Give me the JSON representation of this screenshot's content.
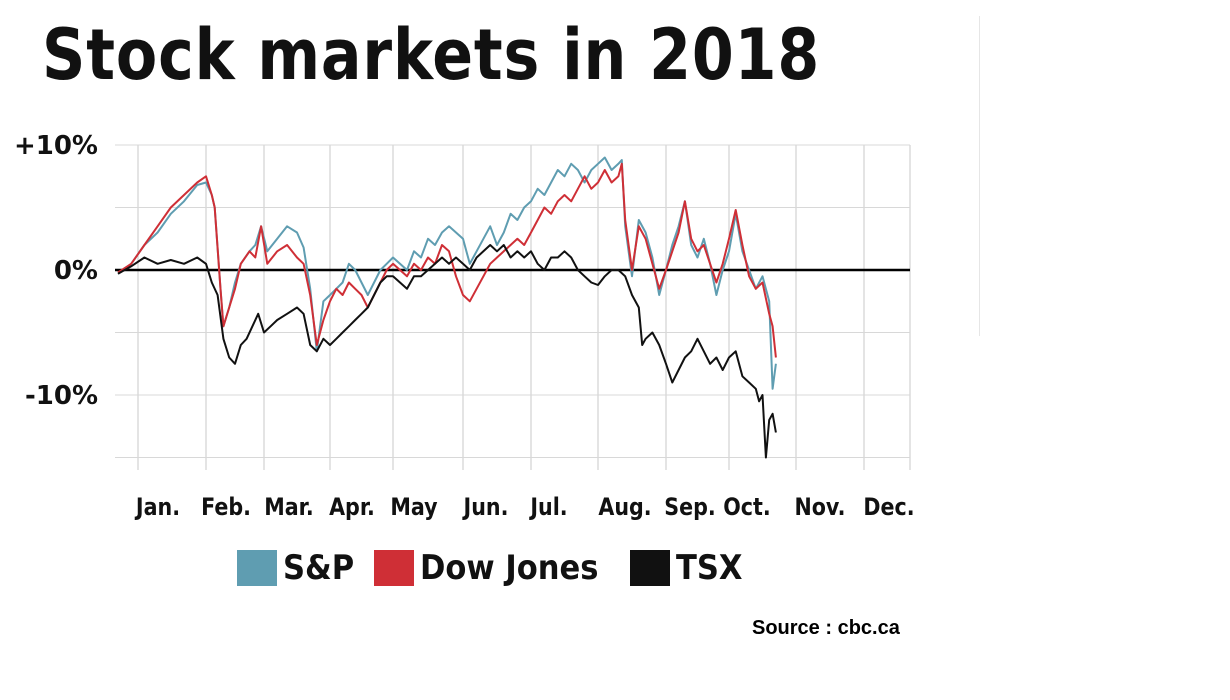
{
  "title": "Stock markets in 2018",
  "source": "Source : cbc.ca",
  "colors": {
    "sp": "#5f9db1",
    "dow": "#cf2f36",
    "tsx": "#111111"
  },
  "chart_data": {
    "type": "line",
    "title": "Stock markets in 2018",
    "ylim": [
      -16,
      10
    ],
    "y_ticks": [
      10,
      0,
      -10
    ],
    "y_tick_labels": [
      "+10%",
      "0%",
      "-10%"
    ],
    "months": [
      "Jan.",
      "Feb.",
      "Mar.",
      "Apr.",
      "May",
      "Jun.",
      "Jul.",
      "Aug.",
      "Sep.",
      "Oct.",
      "Nov.",
      "Dec."
    ],
    "x_unit": "month (0 = start of year, 12 = end of year)",
    "zero_line": true,
    "grid": true,
    "legend": "bottom",
    "series": [
      {
        "name": "S&P",
        "color": "#5f9db1",
        "points": [
          [
            0.0,
            -0.3
          ],
          [
            0.15,
            0.5
          ],
          [
            0.3,
            2.0
          ],
          [
            0.45,
            3.0
          ],
          [
            0.6,
            4.5
          ],
          [
            0.75,
            5.5
          ],
          [
            0.9,
            6.8
          ],
          [
            1.0,
            7.0
          ],
          [
            1.1,
            6.0
          ],
          [
            1.15,
            5.0
          ],
          [
            1.25,
            -1.5
          ],
          [
            1.3,
            -4.5
          ],
          [
            1.4,
            -3.0
          ],
          [
            1.5,
            -1.0
          ],
          [
            1.6,
            0.5
          ],
          [
            1.75,
            1.5
          ],
          [
            1.85,
            2.0
          ],
          [
            1.95,
            3.5
          ],
          [
            2.05,
            1.5
          ],
          [
            2.2,
            2.5
          ],
          [
            2.35,
            3.5
          ],
          [
            2.5,
            3.0
          ],
          [
            2.6,
            1.8
          ],
          [
            2.7,
            -1.5
          ],
          [
            2.8,
            -6.5
          ],
          [
            2.9,
            -2.5
          ],
          [
            3.0,
            -2.0
          ],
          [
            3.1,
            -1.5
          ],
          [
            3.2,
            -1.0
          ],
          [
            3.3,
            0.5
          ],
          [
            3.4,
            0.0
          ],
          [
            3.5,
            -1.0
          ],
          [
            3.6,
            -2.0
          ],
          [
            3.7,
            -1.0
          ],
          [
            3.8,
            0.0
          ],
          [
            3.9,
            0.5
          ],
          [
            4.0,
            1.0
          ],
          [
            4.1,
            0.5
          ],
          [
            4.2,
            0.0
          ],
          [
            4.3,
            1.5
          ],
          [
            4.4,
            1.0
          ],
          [
            4.5,
            2.5
          ],
          [
            4.6,
            2.0
          ],
          [
            4.7,
            3.0
          ],
          [
            4.8,
            3.5
          ],
          [
            4.9,
            3.0
          ],
          [
            5.0,
            2.5
          ],
          [
            5.1,
            0.5
          ],
          [
            5.2,
            1.5
          ],
          [
            5.3,
            2.5
          ],
          [
            5.4,
            3.5
          ],
          [
            5.5,
            2.0
          ],
          [
            5.6,
            3.0
          ],
          [
            5.7,
            4.5
          ],
          [
            5.8,
            4.0
          ],
          [
            5.9,
            5.0
          ],
          [
            6.0,
            5.5
          ],
          [
            6.1,
            6.5
          ],
          [
            6.2,
            6.0
          ],
          [
            6.3,
            7.0
          ],
          [
            6.4,
            8.0
          ],
          [
            6.5,
            7.5
          ],
          [
            6.6,
            8.5
          ],
          [
            6.7,
            8.0
          ],
          [
            6.8,
            7.0
          ],
          [
            6.9,
            8.0
          ],
          [
            7.0,
            8.5
          ],
          [
            7.1,
            9.0
          ],
          [
            7.2,
            8.0
          ],
          [
            7.3,
            8.5
          ],
          [
            7.35,
            8.8
          ],
          [
            7.4,
            3.5
          ],
          [
            7.5,
            -0.5
          ],
          [
            7.6,
            4.0
          ],
          [
            7.7,
            3.0
          ],
          [
            7.8,
            1.0
          ],
          [
            7.9,
            -2.0
          ],
          [
            8.0,
            0.0
          ],
          [
            8.1,
            2.0
          ],
          [
            8.2,
            3.5
          ],
          [
            8.3,
            5.5
          ],
          [
            8.4,
            2.0
          ],
          [
            8.5,
            1.0
          ],
          [
            8.6,
            2.5
          ],
          [
            8.7,
            0.5
          ],
          [
            8.8,
            -2.0
          ],
          [
            8.9,
            0.0
          ],
          [
            9.0,
            1.5
          ],
          [
            9.1,
            4.5
          ],
          [
            9.2,
            1.5
          ],
          [
            9.3,
            0.0
          ],
          [
            9.4,
            -1.5
          ],
          [
            9.5,
            -0.5
          ],
          [
            9.6,
            -2.5
          ],
          [
            9.65,
            -9.5
          ],
          [
            9.7,
            -7.5
          ]
        ]
      },
      {
        "name": "Dow Jones",
        "color": "#cf2f36",
        "points": [
          [
            0.0,
            -0.2
          ],
          [
            0.15,
            0.5
          ],
          [
            0.3,
            2.0
          ],
          [
            0.45,
            3.5
          ],
          [
            0.6,
            5.0
          ],
          [
            0.75,
            6.0
          ],
          [
            0.9,
            7.0
          ],
          [
            1.0,
            7.5
          ],
          [
            1.1,
            6.0
          ],
          [
            1.15,
            5.0
          ],
          [
            1.25,
            -1.5
          ],
          [
            1.3,
            -4.5
          ],
          [
            1.4,
            -3.0
          ],
          [
            1.5,
            -1.5
          ],
          [
            1.6,
            0.5
          ],
          [
            1.75,
            1.5
          ],
          [
            1.85,
            1.0
          ],
          [
            1.95,
            3.5
          ],
          [
            2.05,
            0.5
          ],
          [
            2.2,
            1.5
          ],
          [
            2.35,
            2.0
          ],
          [
            2.5,
            1.0
          ],
          [
            2.6,
            0.5
          ],
          [
            2.7,
            -2.0
          ],
          [
            2.8,
            -6.0
          ],
          [
            2.9,
            -4.0
          ],
          [
            3.0,
            -2.5
          ],
          [
            3.1,
            -1.5
          ],
          [
            3.2,
            -2.0
          ],
          [
            3.3,
            -1.0
          ],
          [
            3.4,
            -1.5
          ],
          [
            3.5,
            -2.0
          ],
          [
            3.6,
            -3.0
          ],
          [
            3.7,
            -2.0
          ],
          [
            3.8,
            -1.0
          ],
          [
            3.9,
            0.0
          ],
          [
            4.0,
            0.5
          ],
          [
            4.1,
            0.0
          ],
          [
            4.2,
            -0.5
          ],
          [
            4.3,
            0.5
          ],
          [
            4.4,
            0.0
          ],
          [
            4.5,
            1.0
          ],
          [
            4.6,
            0.5
          ],
          [
            4.7,
            2.0
          ],
          [
            4.8,
            1.5
          ],
          [
            4.9,
            -0.5
          ],
          [
            5.0,
            -2.0
          ],
          [
            5.1,
            -2.5
          ],
          [
            5.2,
            -1.5
          ],
          [
            5.3,
            -0.5
          ],
          [
            5.4,
            0.5
          ],
          [
            5.5,
            1.0
          ],
          [
            5.6,
            1.5
          ],
          [
            5.7,
            2.0
          ],
          [
            5.8,
            2.5
          ],
          [
            5.9,
            2.0
          ],
          [
            6.0,
            3.0
          ],
          [
            6.1,
            4.0
          ],
          [
            6.2,
            5.0
          ],
          [
            6.3,
            4.5
          ],
          [
            6.4,
            5.5
          ],
          [
            6.5,
            6.0
          ],
          [
            6.6,
            5.5
          ],
          [
            6.7,
            6.5
          ],
          [
            6.8,
            7.5
          ],
          [
            6.9,
            6.5
          ],
          [
            7.0,
            7.0
          ],
          [
            7.1,
            8.0
          ],
          [
            7.2,
            7.0
          ],
          [
            7.3,
            7.5
          ],
          [
            7.35,
            8.5
          ],
          [
            7.4,
            4.0
          ],
          [
            7.5,
            0.0
          ],
          [
            7.6,
            3.5
          ],
          [
            7.7,
            2.5
          ],
          [
            7.8,
            0.5
          ],
          [
            7.9,
            -1.5
          ],
          [
            8.0,
            0.0
          ],
          [
            8.1,
            1.5
          ],
          [
            8.2,
            3.0
          ],
          [
            8.3,
            5.5
          ],
          [
            8.4,
            2.5
          ],
          [
            8.5,
            1.5
          ],
          [
            8.6,
            2.0
          ],
          [
            8.7,
            0.5
          ],
          [
            8.8,
            -1.0
          ],
          [
            8.9,
            0.5
          ],
          [
            9.0,
            2.5
          ],
          [
            9.1,
            4.8
          ],
          [
            9.2,
            2.0
          ],
          [
            9.3,
            -0.5
          ],
          [
            9.4,
            -1.5
          ],
          [
            9.5,
            -1.0
          ],
          [
            9.6,
            -3.5
          ],
          [
            9.65,
            -4.5
          ],
          [
            9.7,
            -7.0
          ]
        ]
      },
      {
        "name": "TSX",
        "color": "#111111",
        "points": [
          [
            0.0,
            -0.3
          ],
          [
            0.15,
            0.3
          ],
          [
            0.3,
            1.0
          ],
          [
            0.45,
            0.5
          ],
          [
            0.6,
            0.8
          ],
          [
            0.75,
            0.5
          ],
          [
            0.9,
            1.0
          ],
          [
            1.0,
            0.5
          ],
          [
            1.1,
            -1.0
          ],
          [
            1.2,
            -2.0
          ],
          [
            1.3,
            -5.5
          ],
          [
            1.4,
            -7.0
          ],
          [
            1.5,
            -7.5
          ],
          [
            1.6,
            -6.0
          ],
          [
            1.7,
            -5.5
          ],
          [
            1.8,
            -4.5
          ],
          [
            1.9,
            -3.5
          ],
          [
            2.0,
            -5.0
          ],
          [
            2.1,
            -4.5
          ],
          [
            2.2,
            -4.0
          ],
          [
            2.35,
            -3.5
          ],
          [
            2.5,
            -3.0
          ],
          [
            2.6,
            -3.5
          ],
          [
            2.7,
            -6.0
          ],
          [
            2.8,
            -6.5
          ],
          [
            2.9,
            -5.5
          ],
          [
            3.0,
            -6.0
          ],
          [
            3.1,
            -5.5
          ],
          [
            3.2,
            -5.0
          ],
          [
            3.3,
            -4.5
          ],
          [
            3.4,
            -4.0
          ],
          [
            3.5,
            -3.5
          ],
          [
            3.6,
            -3.0
          ],
          [
            3.7,
            -2.0
          ],
          [
            3.8,
            -1.0
          ],
          [
            3.9,
            -0.5
          ],
          [
            4.0,
            -0.5
          ],
          [
            4.1,
            -1.0
          ],
          [
            4.2,
            -1.5
          ],
          [
            4.3,
            -0.5
          ],
          [
            4.4,
            -0.5
          ],
          [
            4.5,
            0.0
          ],
          [
            4.6,
            0.5
          ],
          [
            4.7,
            1.0
          ],
          [
            4.8,
            0.5
          ],
          [
            4.9,
            1.0
          ],
          [
            5.0,
            0.5
          ],
          [
            5.1,
            0.0
          ],
          [
            5.2,
            1.0
          ],
          [
            5.3,
            1.5
          ],
          [
            5.4,
            2.0
          ],
          [
            5.5,
            1.5
          ],
          [
            5.6,
            2.0
          ],
          [
            5.7,
            1.0
          ],
          [
            5.8,
            1.5
          ],
          [
            5.9,
            1.0
          ],
          [
            6.0,
            1.5
          ],
          [
            6.1,
            0.5
          ],
          [
            6.2,
            0.0
          ],
          [
            6.3,
            1.0
          ],
          [
            6.4,
            1.0
          ],
          [
            6.5,
            1.5
          ],
          [
            6.6,
            1.0
          ],
          [
            6.7,
            0.0
          ],
          [
            6.8,
            -0.5
          ],
          [
            6.9,
            -1.0
          ],
          [
            7.0,
            -1.2
          ],
          [
            7.1,
            -0.5
          ],
          [
            7.2,
            0.0
          ],
          [
            7.3,
            0.0
          ],
          [
            7.4,
            -0.5
          ],
          [
            7.5,
            -2.0
          ],
          [
            7.6,
            -3.0
          ],
          [
            7.65,
            -6.0
          ],
          [
            7.7,
            -5.5
          ],
          [
            7.8,
            -5.0
          ],
          [
            7.9,
            -6.0
          ],
          [
            8.0,
            -7.5
          ],
          [
            8.1,
            -9.0
          ],
          [
            8.2,
            -8.0
          ],
          [
            8.3,
            -7.0
          ],
          [
            8.4,
            -6.5
          ],
          [
            8.5,
            -5.5
          ],
          [
            8.6,
            -6.5
          ],
          [
            8.7,
            -7.5
          ],
          [
            8.8,
            -7.0
          ],
          [
            8.9,
            -8.0
          ],
          [
            9.0,
            -7.0
          ],
          [
            9.1,
            -6.5
          ],
          [
            9.2,
            -8.5
          ],
          [
            9.3,
            -9.0
          ],
          [
            9.4,
            -9.5
          ],
          [
            9.45,
            -10.5
          ],
          [
            9.5,
            -10.0
          ],
          [
            9.55,
            -15.0
          ],
          [
            9.6,
            -12.0
          ],
          [
            9.65,
            -11.5
          ],
          [
            9.7,
            -13.0
          ]
        ]
      }
    ]
  }
}
